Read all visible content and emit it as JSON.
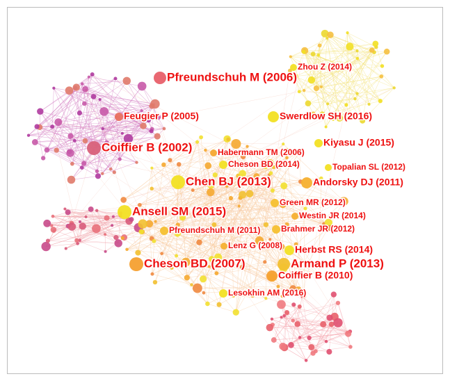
{
  "nodes": [
    {
      "label": "Zhou Z (2014)"
    },
    {
      "label": "Pfreundschuh M (2006)"
    },
    {
      "label": "Feugier P (2005)"
    },
    {
      "label": "Swerdlow SH (2016)"
    },
    {
      "label": "Coiffier B (2002)"
    },
    {
      "label": "Kiyasu J (2015)"
    },
    {
      "label": "Habermann TM (2006)"
    },
    {
      "label": "Cheson BD (2014)"
    },
    {
      "label": "Topalian SL (2012)"
    },
    {
      "label": "Chen BJ (2013)"
    },
    {
      "label": "Andorsky DJ (2011)"
    },
    {
      "label": "Green MR (2012)"
    },
    {
      "label": "Ansell SM (2015)"
    },
    {
      "label": "Westin JR (2014)"
    },
    {
      "label": "Pfreundschuh M (2011)"
    },
    {
      "label": "Brahmer JR (2012)"
    },
    {
      "label": "Lenz G (2008)"
    },
    {
      "label": "Herbst RS (2014)"
    },
    {
      "label": "Cheson BD (2007)"
    },
    {
      "label": "Armand P (2013)"
    },
    {
      "label": "Coiffier B (2010)"
    },
    {
      "label": "Lesokhin AM (2016)"
    }
  ]
}
